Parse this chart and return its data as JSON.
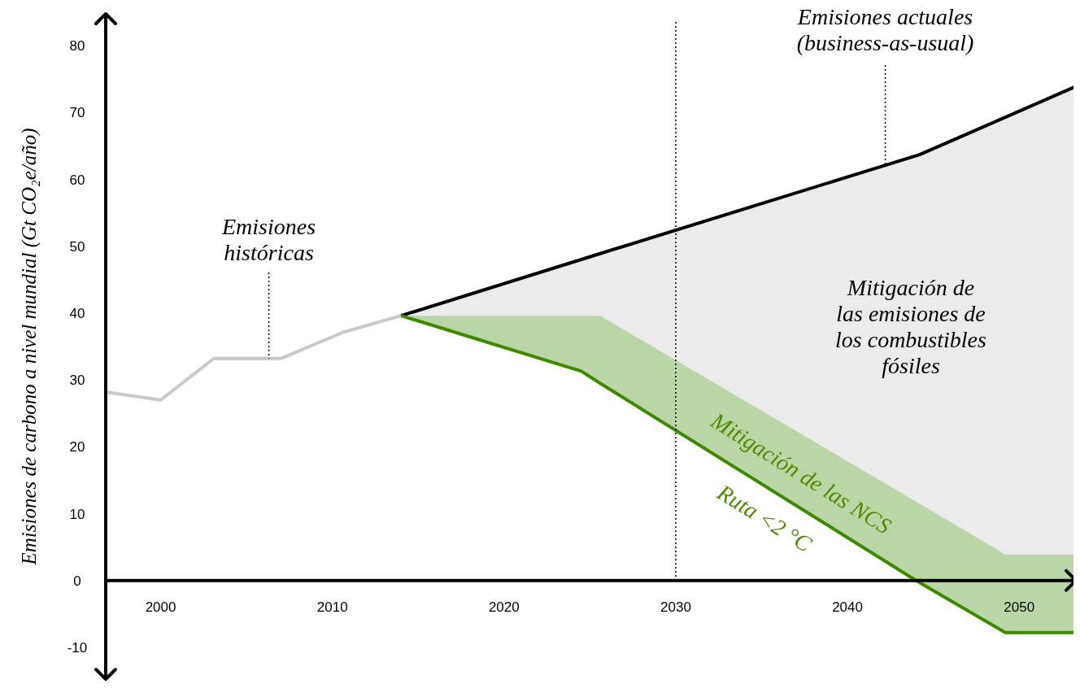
{
  "chart_data": {
    "type": "line",
    "ylabel": "Emisiones de carbono a nivel mundial (Gt CO₂e/año)",
    "xlim": [
      1996.8,
      2053.4
    ],
    "ylim": [
      -15,
      85
    ],
    "xticks": [
      2000,
      2010,
      2020,
      2030,
      2040,
      2050
    ],
    "yticks": [
      -10,
      0,
      10,
      20,
      30,
      40,
      50,
      60,
      70,
      80
    ],
    "grid": false,
    "legend": false,
    "marker": "none",
    "line_style": "solid",
    "series": [
      {
        "color": "#c8c8c8",
        "x": [
          1996.8,
          2000,
          2003.1,
          2007,
          2010.6,
          2014
        ],
        "values": [
          28.2,
          27,
          33.2,
          33.2,
          37.1,
          39.6
        ]
      },
      {
        "color": "#000000",
        "x": [
          2014,
          2025.6,
          2044.2,
          2049.2,
          2053.3
        ],
        "values": [
          39.6,
          48.9,
          63.7,
          69.3,
          73.9
        ],
        "lower": [
          39.6,
          39.6,
          11.5,
          3.9,
          3.9
        ],
        "upper": [
          39.6,
          48.9,
          63.7,
          69.3,
          73.9
        ]
      },
      {
        "color": "#3d8a00",
        "x": [
          2014,
          2016.3,
          2024.5,
          2025.6,
          2044,
          2049.2,
          2053.3
        ],
        "values": [
          39.6,
          37.8,
          31.3,
          29.5,
          0,
          -7.8,
          -7.8
        ],
        "lower": [
          39.6,
          37.8,
          31.3,
          29.5,
          0,
          -7.8,
          -7.8
        ],
        "upper": [
          39.6,
          39.6,
          39.6,
          39.6,
          11.8,
          3.9,
          3.9
        ]
      }
    ],
    "ref_lines": [
      {
        "axis": "x",
        "value": 2030,
        "label": null,
        "color": "#000000",
        "line_style": "dotted"
      }
    ],
    "annotations": [
      {
        "text": "Emisiones\nhistóricas",
        "x": 2006.3,
        "y": 33.2
      },
      {
        "text": "Emisiones actuales\n(business-as-usual)",
        "x": 2042.2,
        "y": 62.1
      },
      "Mitigación de\nlas emisiones de\nlos combustibles\nfósiles",
      "Mitigación de las NCS",
      "Ruta <2 °C"
    ]
  }
}
